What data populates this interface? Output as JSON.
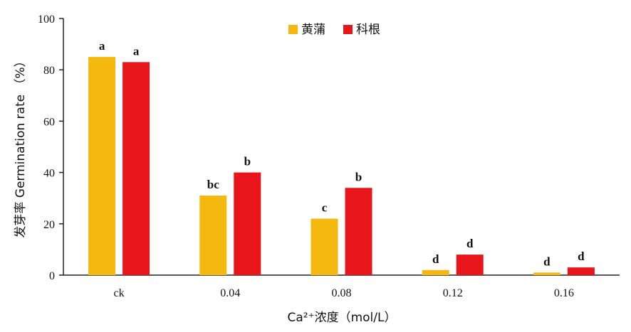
{
  "chart_data": {
    "type": "bar",
    "categories": [
      "ck",
      "0.04",
      "0.08",
      "0.12",
      "0.16"
    ],
    "series": [
      {
        "name": "黄蒲",
        "color": "#F5B80F",
        "values": [
          85,
          31,
          22,
          2,
          1
        ],
        "labels": [
          "a",
          "bc",
          "c",
          "d",
          "d"
        ]
      },
      {
        "name": "科根",
        "color": "#E8161B",
        "values": [
          83,
          40,
          34,
          8,
          3
        ],
        "labels": [
          "a",
          "b",
          "b",
          "d",
          "d"
        ]
      }
    ],
    "ylim": [
      0,
      100
    ],
    "yticks": [
      0,
      20,
      40,
      60,
      80,
      100
    ],
    "ylabel": "发芽率 Germination rate （%）",
    "xlabel": "Ca²⁺浓度（mol/L）",
    "legend_position": "top-center",
    "grid": false
  }
}
